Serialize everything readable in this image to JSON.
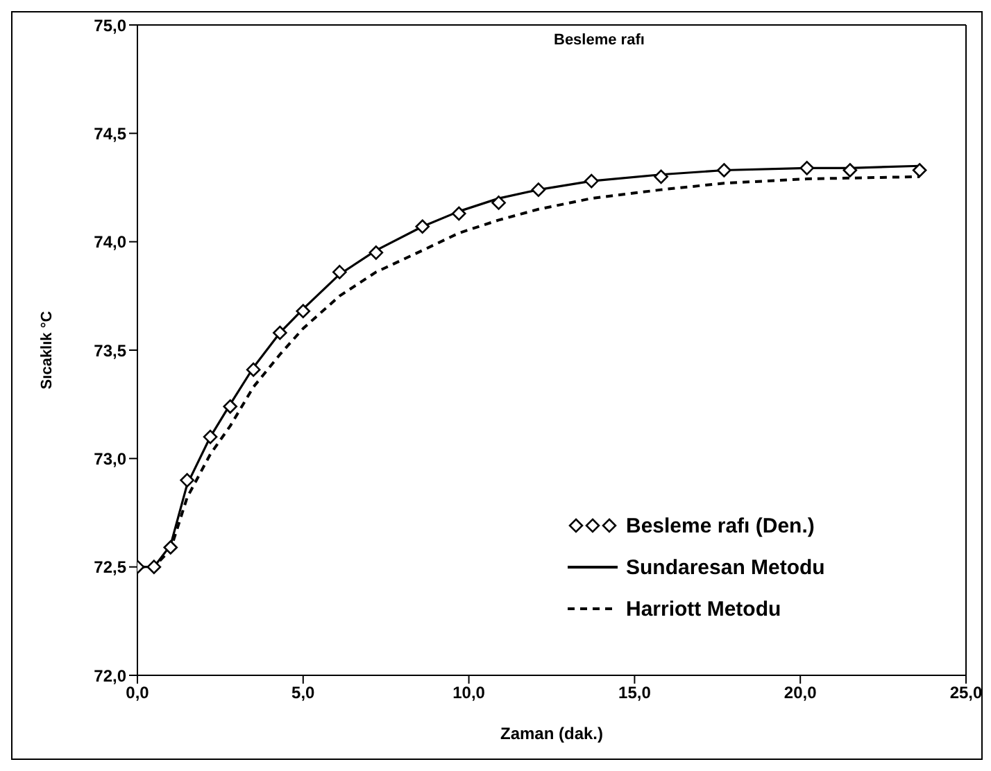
{
  "chart_data": {
    "type": "line",
    "title": "Besleme rafı",
    "xlabel": "Zaman (dak.)",
    "ylabel": "Sıcaklık °C",
    "xlim": [
      0,
      25
    ],
    "xticks": [
      {
        "value": 0,
        "label": "0,0"
      },
      {
        "value": 5,
        "label": "5,0"
      },
      {
        "value": 10,
        "label": "10,0"
      },
      {
        "value": 15,
        "label": "15,0"
      },
      {
        "value": 20,
        "label": "20,0"
      },
      {
        "value": 25,
        "label": "25,0"
      }
    ],
    "ylim": [
      72,
      75
    ],
    "yticks": [
      {
        "value": 72,
        "label": "72,0"
      },
      {
        "value": 72.5,
        "label": "72,5"
      },
      {
        "value": 73,
        "label": "73,0"
      },
      {
        "value": 73.5,
        "label": "73,5"
      },
      {
        "value": 74,
        "label": "74,0"
      },
      {
        "value": 74.5,
        "label": "74,5"
      },
      {
        "value": 75,
        "label": "75,0"
      }
    ],
    "grid": false,
    "legend": "bottom right",
    "series": [
      {
        "name": "Besleme rafı (Den.)",
        "type": "scatter",
        "marker": "diamond",
        "color": "#000000",
        "x": [
          0,
          0.5,
          1,
          1.5,
          2.2,
          2.8,
          3.5,
          4.3,
          5,
          6.1,
          7.2,
          8.6,
          9.7,
          10.9,
          12.1,
          13.7,
          15.8,
          17.7,
          20.2,
          21.5,
          23.6
        ],
        "values": [
          72.5,
          72.5,
          72.59,
          72.9,
          73.1,
          73.24,
          73.41,
          73.58,
          73.68,
          73.86,
          73.95,
          74.07,
          74.13,
          74.18,
          74.24,
          74.28,
          74.3,
          74.33,
          74.34,
          74.33,
          74.33
        ]
      },
      {
        "name": "Sundaresan Metodu",
        "type": "line",
        "line_style": "solid",
        "color": "#000000",
        "x": [
          0,
          0.5,
          1,
          1.5,
          2.2,
          2.8,
          3.5,
          4.3,
          5,
          6.1,
          7.2,
          8.6,
          9.7,
          10.9,
          12.1,
          13.7,
          15.8,
          17.7,
          20.2,
          21.5,
          23.6
        ],
        "values": [
          72.5,
          72.5,
          72.6,
          72.88,
          73.1,
          73.25,
          73.42,
          73.58,
          73.69,
          73.85,
          73.96,
          74.07,
          74.14,
          74.2,
          74.24,
          74.28,
          74.31,
          74.33,
          74.34,
          74.34,
          74.35
        ]
      },
      {
        "name": "Harriott Metodu",
        "type": "line",
        "line_style": "dashed",
        "color": "#000000",
        "x": [
          0,
          0.5,
          1,
          1.5,
          2.2,
          2.8,
          3.5,
          4.3,
          5,
          6.1,
          7.2,
          8.6,
          9.7,
          10.9,
          12.1,
          13.7,
          15.8,
          17.7,
          20.2,
          23.6
        ],
        "values": [
          72.5,
          72.5,
          72.58,
          72.82,
          73.02,
          73.15,
          73.33,
          73.48,
          73.6,
          73.75,
          73.86,
          73.96,
          74.04,
          74.1,
          74.15,
          74.2,
          74.24,
          74.27,
          74.29,
          74.3
        ]
      }
    ]
  }
}
